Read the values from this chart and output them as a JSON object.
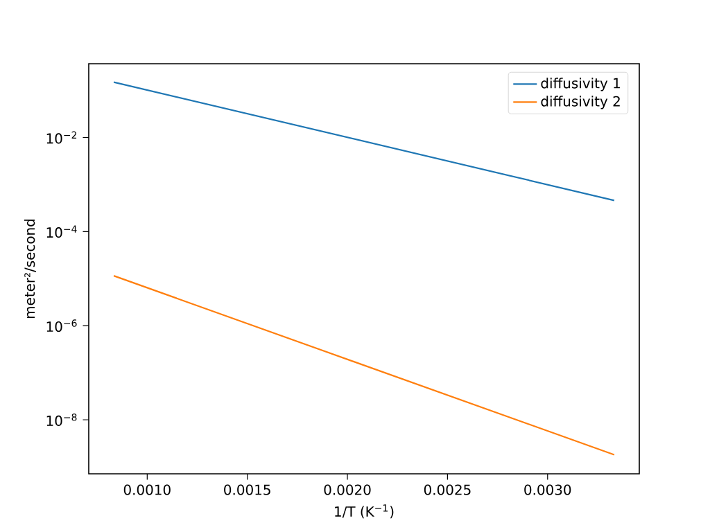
{
  "chart_data": {
    "type": "line",
    "xlabel": "1/T (K$^{−1}$)",
    "ylabel": "meter²/second",
    "x": [
      0.000833,
      0.003333
    ],
    "series": [
      {
        "name": "diffusivity 1",
        "color": "#1f77b4",
        "values": [
          0.15,
          0.00046
        ]
      },
      {
        "name": "diffusivity 2",
        "color": "#ff7f0e",
        "values": [
          1.15e-05,
          1.8e-09
        ]
      }
    ],
    "xlim": [
      0.000708,
      0.003458
    ],
    "xticks": [
      {
        "value": 0.001,
        "label": "0.0010"
      },
      {
        "value": 0.0015,
        "label": "0.0015"
      },
      {
        "value": 0.002,
        "label": "0.0020"
      },
      {
        "value": 0.0025,
        "label": "0.0025"
      },
      {
        "value": 0.003,
        "label": "0.0030"
      }
    ],
    "ylim": [
      7.1e-10,
      0.37
    ],
    "yticks": [
      {
        "value": 1e-08,
        "label": "10$^{−8}$"
      },
      {
        "value": 1e-06,
        "label": "10$^{−6}$"
      },
      {
        "value": 0.0001,
        "label": "10$^{−4}$"
      },
      {
        "value": 0.01,
        "label": "10$^{−2}$"
      }
    ],
    "log": "y",
    "legend": "top right",
    "grid": false,
    "marker": "none",
    "line_style": "solid"
  }
}
